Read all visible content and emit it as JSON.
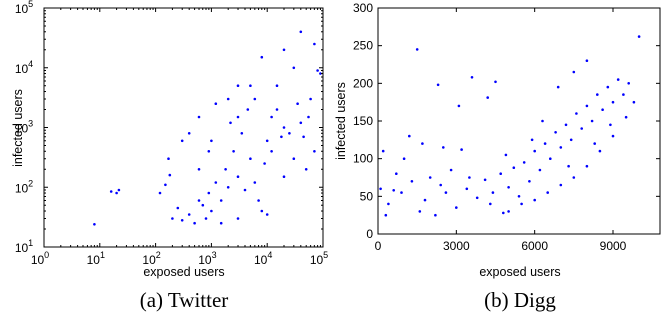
{
  "chart_data": [
    {
      "type": "scatter",
      "caption": "(a) Twitter",
      "xlabel": "exposed users",
      "ylabel": "infected users",
      "x_scale": "log",
      "y_scale": "log",
      "xlim": [
        1,
        100000
      ],
      "ylim": [
        10,
        100000
      ],
      "x_ticks": [
        {
          "base": "10",
          "exp": "0",
          "v": 1
        },
        {
          "base": "10",
          "exp": "1",
          "v": 10
        },
        {
          "base": "10",
          "exp": "2",
          "v": 100
        },
        {
          "base": "10",
          "exp": "3",
          "v": 1000
        },
        {
          "base": "10",
          "exp": "4",
          "v": 10000
        },
        {
          "base": "10",
          "exp": "5",
          "v": 100000
        }
      ],
      "y_ticks": [
        {
          "base": "10",
          "exp": "1",
          "v": 10
        },
        {
          "base": "10",
          "exp": "2",
          "v": 100
        },
        {
          "base": "10",
          "exp": "3",
          "v": 1000
        },
        {
          "base": "10",
          "exp": "4",
          "v": 10000
        },
        {
          "base": "10",
          "exp": "5",
          "v": 100000
        }
      ],
      "grid": false,
      "color": "#0000ff",
      "points": [
        [
          8,
          24
        ],
        [
          16,
          85
        ],
        [
          20,
          80
        ],
        [
          22,
          90
        ],
        [
          120,
          80
        ],
        [
          150,
          110
        ],
        [
          170,
          300
        ],
        [
          180,
          160
        ],
        [
          300,
          600
        ],
        [
          400,
          800
        ],
        [
          600,
          1500
        ],
        [
          900,
          400
        ],
        [
          1200,
          2500
        ],
        [
          2000,
          3000
        ],
        [
          3000,
          5000
        ],
        [
          5000,
          5000
        ],
        [
          8000,
          15000
        ],
        [
          20000,
          20000
        ],
        [
          40000,
          40000
        ],
        [
          30000,
          10000
        ],
        [
          70000,
          25000
        ],
        [
          90000,
          8000
        ],
        [
          60000,
          3000
        ],
        [
          80000,
          9000
        ],
        [
          55000,
          1500
        ],
        [
          45000,
          700
        ],
        [
          70000,
          400
        ],
        [
          20000,
          1000
        ],
        [
          10000,
          600
        ],
        [
          15000,
          2000
        ],
        [
          5000,
          300
        ],
        [
          3000,
          150
        ],
        [
          2000,
          100
        ],
        [
          1500,
          60
        ],
        [
          1000,
          40
        ],
        [
          800,
          30
        ],
        [
          500,
          25
        ],
        [
          700,
          50
        ],
        [
          400,
          35
        ],
        [
          300,
          28
        ],
        [
          250,
          45
        ],
        [
          200,
          30
        ],
        [
          6000,
          120
        ],
        [
          9000,
          250
        ],
        [
          12000,
          400
        ],
        [
          25000,
          800
        ],
        [
          35000,
          2500
        ],
        [
          3500,
          800
        ],
        [
          2500,
          400
        ],
        [
          1800,
          200
        ],
        [
          4000,
          90
        ],
        [
          7000,
          60
        ],
        [
          10000,
          35
        ],
        [
          1200,
          120
        ],
        [
          900,
          80
        ],
        [
          600,
          60
        ],
        [
          2200,
          1200
        ],
        [
          4500,
          2000
        ],
        [
          15000,
          5000
        ],
        [
          30000,
          300
        ],
        [
          50000,
          200
        ],
        [
          20000,
          150
        ],
        [
          8000,
          40
        ],
        [
          3000,
          30
        ],
        [
          1500,
          25
        ],
        [
          600,
          200
        ],
        [
          1000,
          600
        ],
        [
          3000,
          1500
        ],
        [
          6000,
          3000
        ],
        [
          12000,
          1500
        ],
        [
          18000,
          700
        ],
        [
          40000,
          1200
        ]
      ]
    },
    {
      "type": "scatter",
      "caption": "(b) Digg",
      "xlabel": "exposed users",
      "ylabel": "infected users",
      "xlim": [
        0,
        10800
      ],
      "ylim": [
        0,
        300
      ],
      "x_ticks": [
        0,
        3000,
        6000,
        9000
      ],
      "y_ticks": [
        0,
        50,
        100,
        150,
        200,
        250,
        300
      ],
      "grid": false,
      "color": "#0000ff",
      "points": [
        [
          1500,
          245
        ],
        [
          2300,
          198
        ],
        [
          3100,
          170
        ],
        [
          3200,
          112
        ],
        [
          3600,
          208
        ],
        [
          4200,
          181
        ],
        [
          4500,
          202
        ],
        [
          4900,
          105
        ],
        [
          2500,
          115
        ],
        [
          1200,
          130
        ],
        [
          200,
          110
        ],
        [
          100,
          60
        ],
        [
          400,
          40
        ],
        [
          700,
          80
        ],
        [
          900,
          55
        ],
        [
          1000,
          100
        ],
        [
          1300,
          70
        ],
        [
          1600,
          30
        ],
        [
          1800,
          45
        ],
        [
          2000,
          75
        ],
        [
          2200,
          25
        ],
        [
          2600,
          55
        ],
        [
          2800,
          85
        ],
        [
          3000,
          35
        ],
        [
          3400,
          60
        ],
        [
          3800,
          48
        ],
        [
          4100,
          72
        ],
        [
          4400,
          55
        ],
        [
          4700,
          80
        ],
        [
          5000,
          62
        ],
        [
          5200,
          88
        ],
        [
          5400,
          50
        ],
        [
          5600,
          95
        ],
        [
          5800,
          70
        ],
        [
          6000,
          110
        ],
        [
          6200,
          85
        ],
        [
          6400,
          120
        ],
        [
          6600,
          100
        ],
        [
          6800,
          135
        ],
        [
          7000,
          115
        ],
        [
          7200,
          145
        ],
        [
          7400,
          125
        ],
        [
          7600,
          160
        ],
        [
          7800,
          140
        ],
        [
          8000,
          170
        ],
        [
          8200,
          150
        ],
        [
          8400,
          185
        ],
        [
          8600,
          165
        ],
        [
          8800,
          195
        ],
        [
          9000,
          175
        ],
        [
          9200,
          205
        ],
        [
          9400,
          185
        ],
        [
          9600,
          200
        ],
        [
          10000,
          262
        ],
        [
          8000,
          230
        ],
        [
          7500,
          215
        ],
        [
          6900,
          195
        ],
        [
          5000,
          30
        ],
        [
          5500,
          40
        ],
        [
          6000,
          45
        ],
        [
          6500,
          55
        ],
        [
          7000,
          65
        ],
        [
          7500,
          75
        ],
        [
          8000,
          90
        ],
        [
          8500,
          110
        ],
        [
          9000,
          130
        ],
        [
          9500,
          155
        ],
        [
          4800,
          28
        ],
        [
          4300,
          40
        ],
        [
          3500,
          75
        ],
        [
          300,
          25
        ],
        [
          600,
          58
        ],
        [
          1700,
          120
        ],
        [
          2400,
          65
        ],
        [
          6300,
          150
        ],
        [
          5900,
          125
        ],
        [
          7300,
          90
        ],
        [
          8300,
          120
        ],
        [
          8900,
          145
        ],
        [
          9800,
          175
        ]
      ]
    }
  ]
}
